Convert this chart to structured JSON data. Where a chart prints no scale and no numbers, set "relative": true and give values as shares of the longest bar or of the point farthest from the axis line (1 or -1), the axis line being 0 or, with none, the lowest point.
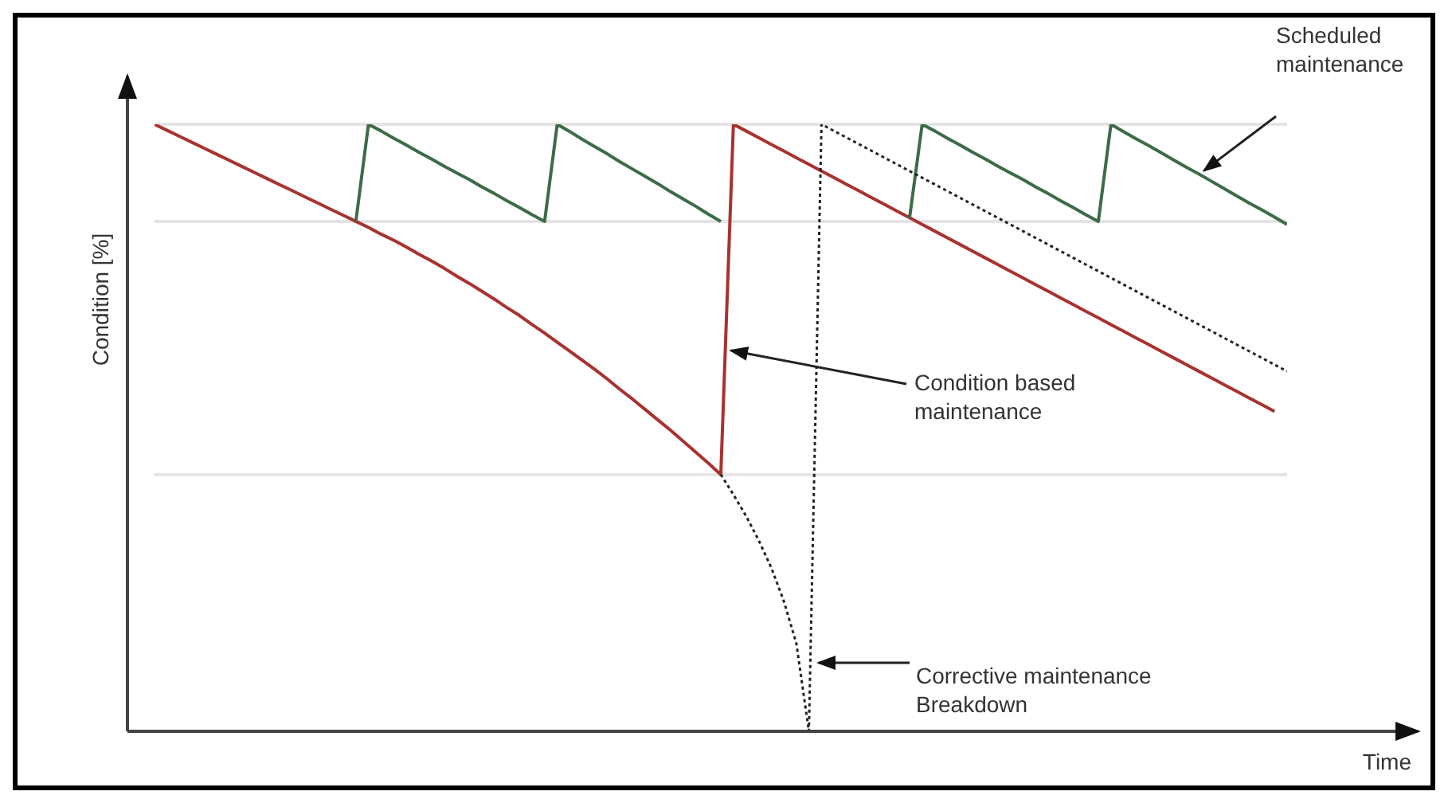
{
  "chart_data": {
    "type": "line",
    "relative": true,
    "xlabel": "Time",
    "ylabel": "Condition [%]",
    "tick_labels": false,
    "grid": false,
    "legend": false,
    "marker": "none",
    "categories": [
      null,
      null,
      null,
      null,
      null,
      null,
      null,
      null,
      null,
      null,
      null,
      null,
      null,
      null,
      null,
      null,
      null,
      null,
      null,
      null,
      null,
      null,
      null,
      null,
      null,
      null,
      null,
      null,
      null,
      null,
      null,
      null,
      null,
      null,
      null,
      null,
      null,
      null,
      null,
      null,
      null,
      null,
      null,
      null,
      null,
      null,
      null,
      null,
      null,
      null,
      null,
      null,
      null,
      null,
      null,
      null,
      null,
      null,
      null,
      null,
      null,
      null,
      null,
      null,
      null,
      null,
      null,
      null,
      null,
      null,
      null,
      null,
      null,
      null,
      null,
      null,
      null,
      null,
      null,
      null,
      null,
      null,
      null,
      null,
      null,
      null,
      null,
      null,
      null,
      null,
      null
    ],
    "series": [
      {
        "color": "#a8322f",
        "values": [
          1,
          0.99,
          0.98,
          0.97,
          0.96,
          0.95,
          0.94,
          0.93,
          0.92,
          0.91,
          0.9,
          0.89,
          0.88,
          0.87,
          0.86,
          0.85,
          0.84,
          0.83,
          0.819,
          0.809,
          0.798,
          0.786,
          0.775,
          0.763,
          0.75,
          0.738,
          0.725,
          0.712,
          0.698,
          0.685,
          0.67,
          0.656,
          0.641,
          0.626,
          0.611,
          0.596,
          0.58,
          0.563,
          0.547,
          0.53,
          0.513,
          0.496,
          0.478,
          0.46,
          0.442,
          0.423,
          1,
          0.989,
          0.978,
          0.967,
          0.956,
          0.945,
          0.934,
          0.923,
          0.912,
          0.901,
          0.89,
          0.879,
          0.868,
          0.857,
          0.846,
          0.835,
          0.824,
          0.813,
          0.802,
          0.791,
          0.78,
          0.769,
          0.758,
          0.747,
          0.736,
          0.725,
          0.714,
          0.703,
          0.692,
          0.681,
          0.67,
          0.659,
          0.648,
          0.637,
          0.626,
          0.615,
          0.604,
          0.593,
          0.582,
          0.571,
          0.56,
          0.549,
          0.538,
          0.527,
          null
        ]
      },
      {
        "color": "#3d6b4a",
        "values": [
          null,
          null,
          null,
          null,
          null,
          null,
          null,
          null,
          null,
          null,
          null,
          null,
          null,
          null,
          null,
          null,
          0.84,
          1,
          0.989,
          0.977,
          0.966,
          0.954,
          0.943,
          0.931,
          0.92,
          0.909,
          0.897,
          0.886,
          0.874,
          0.863,
          0.851,
          0.84,
          1,
          0.988,
          0.975,
          0.963,
          0.951,
          0.938,
          0.926,
          0.914,
          0.902,
          0.889,
          0.877,
          0.865,
          0.852,
          0.84,
          null,
          null,
          null,
          null,
          null,
          null,
          null,
          null,
          null,
          null,
          null,
          null,
          null,
          null,
          0.846,
          1,
          0.989,
          0.977,
          0.966,
          0.954,
          0.943,
          0.931,
          0.92,
          0.909,
          0.897,
          0.886,
          0.874,
          0.863,
          0.851,
          0.84,
          1,
          0.988,
          0.976,
          0.965,
          0.953,
          0.941,
          0.929,
          0.918,
          0.906,
          0.894,
          0.882,
          0.87,
          0.859,
          0.847,
          0.835
        ]
      },
      {
        "color": "#222222",
        "line_style": "dotted",
        "values": [
          null,
          null,
          null,
          null,
          null,
          null,
          null,
          null,
          null,
          null,
          null,
          null,
          null,
          null,
          null,
          null,
          null,
          null,
          null,
          null,
          null,
          null,
          null,
          null,
          null,
          null,
          null,
          null,
          null,
          null,
          null,
          null,
          null,
          null,
          null,
          null,
          null,
          null,
          null,
          null,
          null,
          null,
          null,
          null,
          null,
          0.423,
          0.39,
          0.355,
          0.315,
          0.27,
          0.215,
          0.145,
          0,
          1,
          0.989,
          0.978,
          0.967,
          0.956,
          0.945,
          0.934,
          0.923,
          0.912,
          0.901,
          0.89,
          0.879,
          0.868,
          0.857,
          0.846,
          0.835,
          0.824,
          0.813,
          0.802,
          0.791,
          0.78,
          0.769,
          0.758,
          0.747,
          0.736,
          0.725,
          0.714,
          0.703,
          0.692,
          0.681,
          0.67,
          0.659,
          0.648,
          0.637,
          0.626,
          0.615,
          0.604,
          0.593
        ]
      }
    ],
    "ref_lines": [
      {
        "axis": "y",
        "value": 1,
        "color": "#e4e4e4"
      },
      {
        "axis": "y",
        "value": 0.84,
        "color": "#e4e4e4"
      },
      {
        "axis": "y",
        "value": 0.423,
        "color": "#e4e4e4"
      }
    ],
    "annotations": [
      "Scheduled\nmaintenance",
      "Condition based\nmaintenance",
      "Corrective maintenance\nBreakdown"
    ]
  }
}
